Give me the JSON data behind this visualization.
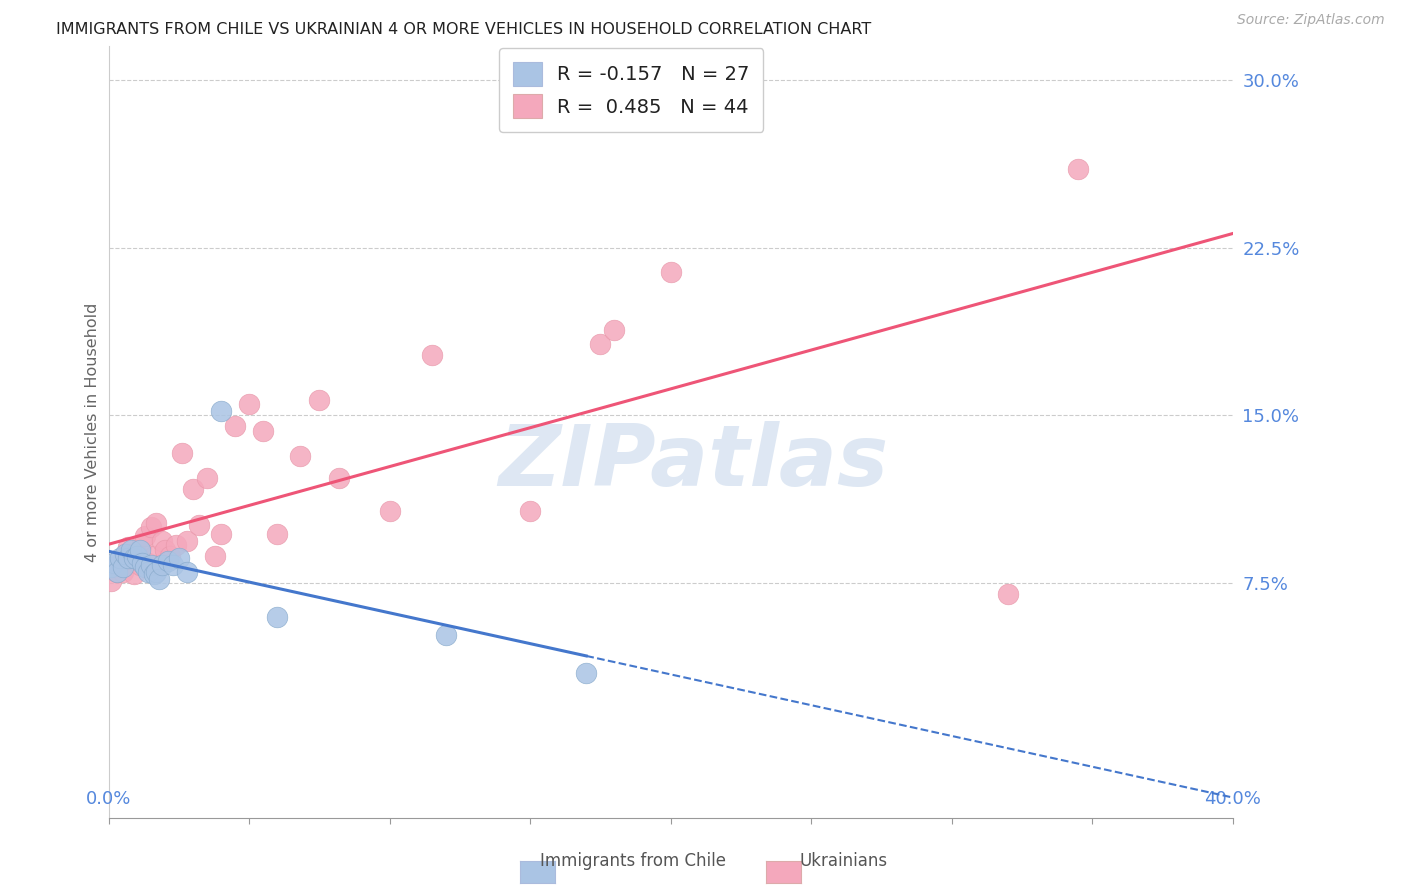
{
  "title": "IMMIGRANTS FROM CHILE VS UKRAINIAN 4 OR MORE VEHICLES IN HOUSEHOLD CORRELATION CHART",
  "source": "Source: ZipAtlas.com",
  "ylabel_label": "4 or more Vehicles in Household",
  "ytick_labels": [
    "7.5%",
    "15.0%",
    "22.5%",
    "30.0%"
  ],
  "ytick_values": [
    0.075,
    0.15,
    0.225,
    0.3
  ],
  "xmin": 0.0,
  "xmax": 0.4,
  "ymin": -0.03,
  "ymax": 0.315,
  "chile_R": -0.157,
  "chile_N": 27,
  "ukraine_R": 0.485,
  "ukraine_N": 44,
  "chile_dot_color": "#aac4e4",
  "ukraine_dot_color": "#f4a8bc",
  "chile_line_color": "#4477cc",
  "ukraine_line_color": "#ee5577",
  "watermark_text": "ZIPatlas",
  "watermark_color": "#c8d8ec",
  "background_color": "#ffffff",
  "grid_color": "#cccccc",
  "legend_text_color": "#222222",
  "legend_num_color": "#3366dd",
  "axis_label_color": "#5588dd",
  "chile_x": [
    0.001,
    0.002,
    0.003,
    0.004,
    0.005,
    0.006,
    0.007,
    0.008,
    0.009,
    0.01,
    0.011,
    0.012,
    0.013,
    0.014,
    0.015,
    0.016,
    0.017,
    0.018,
    0.019,
    0.021,
    0.023,
    0.025,
    0.028,
    0.04,
    0.06,
    0.12,
    0.17
  ],
  "chile_y": [
    0.082,
    0.084,
    0.08,
    0.086,
    0.082,
    0.088,
    0.086,
    0.09,
    0.086,
    0.087,
    0.09,
    0.084,
    0.082,
    0.08,
    0.083,
    0.079,
    0.08,
    0.077,
    0.083,
    0.085,
    0.083,
    0.086,
    0.08,
    0.152,
    0.06,
    0.052,
    0.035
  ],
  "ukraine_x": [
    0.001,
    0.002,
    0.003,
    0.004,
    0.005,
    0.006,
    0.007,
    0.008,
    0.009,
    0.01,
    0.011,
    0.012,
    0.013,
    0.014,
    0.015,
    0.016,
    0.017,
    0.018,
    0.019,
    0.02,
    0.022,
    0.024,
    0.026,
    0.028,
    0.03,
    0.032,
    0.035,
    0.038,
    0.04,
    0.045,
    0.05,
    0.055,
    0.06,
    0.068,
    0.075,
    0.082,
    0.1,
    0.115,
    0.15,
    0.175,
    0.18,
    0.2,
    0.32,
    0.345
  ],
  "ukraine_y": [
    0.076,
    0.082,
    0.08,
    0.084,
    0.08,
    0.087,
    0.091,
    0.088,
    0.079,
    0.088,
    0.083,
    0.093,
    0.096,
    0.084,
    0.1,
    0.087,
    0.102,
    0.083,
    0.094,
    0.09,
    0.087,
    0.092,
    0.133,
    0.094,
    0.117,
    0.101,
    0.122,
    0.087,
    0.097,
    0.145,
    0.155,
    0.143,
    0.097,
    0.132,
    0.157,
    0.122,
    0.107,
    0.177,
    0.107,
    0.182,
    0.188,
    0.214,
    0.07,
    0.26
  ]
}
